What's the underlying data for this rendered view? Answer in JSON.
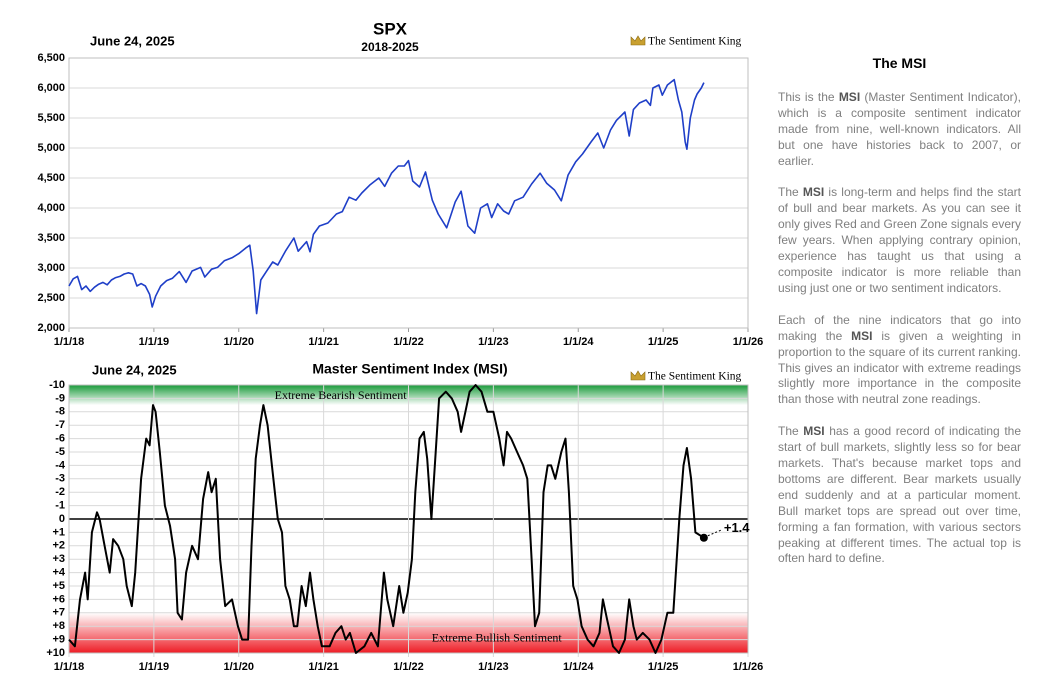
{
  "chart_data": [
    {
      "type": "line",
      "title": "SPX",
      "subtitle": "2018-2025",
      "date_label": "June 24, 2025",
      "logo": "The Sentiment King",
      "color": "#1f3fc8",
      "grid": true,
      "xgrid": false,
      "xlim": [
        2018,
        2026
      ],
      "xticks": [
        {
          "value": 2018,
          "label": "1/1/18"
        },
        {
          "value": 2019,
          "label": "1/1/19"
        },
        {
          "value": 2020,
          "label": "1/1/20"
        },
        {
          "value": 2021,
          "label": "1/1/21"
        },
        {
          "value": 2022,
          "label": "1/1/22"
        },
        {
          "value": 2023,
          "label": "1/1/23"
        },
        {
          "value": 2024,
          "label": "1/1/24"
        },
        {
          "value": 2025,
          "label": "1/1/25"
        },
        {
          "value": 2026,
          "label": "1/1/26"
        }
      ],
      "ylim": [
        2000,
        6500
      ],
      "yticks": [
        {
          "value": 2000,
          "label": "2,000"
        },
        {
          "value": 2500,
          "label": "2,500"
        },
        {
          "value": 3000,
          "label": "3,000"
        },
        {
          "value": 3500,
          "label": "3,500"
        },
        {
          "value": 4000,
          "label": "4,000"
        },
        {
          "value": 4500,
          "label": "4,500"
        },
        {
          "value": 5000,
          "label": "5,000"
        },
        {
          "value": 5500,
          "label": "5,500"
        },
        {
          "value": 6000,
          "label": "6,000"
        },
        {
          "value": 6500,
          "label": "6,500"
        }
      ],
      "x": [
        2018.0,
        2018.05,
        2018.1,
        2018.15,
        2018.2,
        2018.25,
        2018.3,
        2018.35,
        2018.4,
        2018.45,
        2018.5,
        2018.55,
        2018.6,
        2018.65,
        2018.7,
        2018.75,
        2018.8,
        2018.85,
        2018.9,
        2018.95,
        2018.98,
        2019.02,
        2019.08,
        2019.15,
        2019.22,
        2019.3,
        2019.38,
        2019.45,
        2019.55,
        2019.6,
        2019.68,
        2019.75,
        2019.83,
        2019.92,
        2020.0,
        2020.08,
        2020.13,
        2020.17,
        2020.21,
        2020.26,
        2020.32,
        2020.4,
        2020.46,
        2020.55,
        2020.65,
        2020.7,
        2020.8,
        2020.84,
        2020.88,
        2020.95,
        2021.05,
        2021.15,
        2021.22,
        2021.3,
        2021.38,
        2021.45,
        2021.55,
        2021.65,
        2021.72,
        2021.8,
        2021.88,
        2021.95,
        2022.0,
        2022.05,
        2022.13,
        2022.2,
        2022.28,
        2022.35,
        2022.45,
        2022.55,
        2022.62,
        2022.7,
        2022.78,
        2022.85,
        2022.93,
        2022.98,
        2023.05,
        2023.12,
        2023.18,
        2023.25,
        2023.35,
        2023.45,
        2023.55,
        2023.63,
        2023.72,
        2023.8,
        2023.88,
        2023.97,
        2024.05,
        2024.15,
        2024.23,
        2024.3,
        2024.38,
        2024.45,
        2024.55,
        2024.6,
        2024.65,
        2024.72,
        2024.8,
        2024.85,
        2024.88,
        2024.95,
        2024.99,
        2025.05,
        2025.13,
        2025.18,
        2025.22,
        2025.26,
        2025.28,
        2025.32,
        2025.37,
        2025.4,
        2025.45,
        2025.48
      ],
      "values": [
        2700,
        2820,
        2860,
        2640,
        2700,
        2610,
        2680,
        2730,
        2760,
        2720,
        2800,
        2840,
        2860,
        2900,
        2920,
        2900,
        2700,
        2740,
        2700,
        2560,
        2350,
        2530,
        2700,
        2790,
        2830,
        2940,
        2760,
        2950,
        3010,
        2850,
        2980,
        3010,
        3120,
        3170,
        3240,
        3330,
        3380,
        2950,
        2240,
        2800,
        2930,
        3100,
        3050,
        3280,
        3500,
        3280,
        3440,
        3270,
        3560,
        3700,
        3750,
        3900,
        3940,
        4180,
        4130,
        4250,
        4390,
        4500,
        4360,
        4580,
        4700,
        4700,
        4790,
        4450,
        4350,
        4600,
        4130,
        3900,
        3670,
        4100,
        4280,
        3700,
        3580,
        4000,
        4070,
        3840,
        4070,
        3950,
        3900,
        4120,
        4180,
        4400,
        4580,
        4410,
        4300,
        4120,
        4550,
        4770,
        4900,
        5100,
        5250,
        5000,
        5300,
        5460,
        5600,
        5200,
        5640,
        5750,
        5800,
        5710,
        6000,
        6050,
        5880,
        6050,
        6140,
        5800,
        5600,
        5100,
        4980,
        5500,
        5800,
        5900,
        6000,
        6090
      ]
    },
    {
      "type": "line",
      "title": "Master Sentiment Index (MSI)",
      "date_label": "June 24, 2025",
      "logo": "The Sentiment King",
      "color": "#000000",
      "grid": true,
      "xgrid": true,
      "y_inverted": true,
      "xlim": [
        2018,
        2026
      ],
      "xticks": [
        {
          "value": 2018,
          "label": "1/1/18"
        },
        {
          "value": 2019,
          "label": "1/1/19"
        },
        {
          "value": 2020,
          "label": "1/1/20"
        },
        {
          "value": 2021,
          "label": "1/1/21"
        },
        {
          "value": 2022,
          "label": "1/1/22"
        },
        {
          "value": 2023,
          "label": "1/1/23"
        },
        {
          "value": 2024,
          "label": "1/1/24"
        },
        {
          "value": 2025,
          "label": "1/1/25"
        },
        {
          "value": 2026,
          "label": "1/1/26"
        }
      ],
      "ylim": [
        -10,
        10
      ],
      "yticks": [
        -10,
        -9,
        -8,
        -7,
        -6,
        -5,
        -4,
        -3,
        -2,
        -1,
        0,
        {
          "value": 1,
          "label": "+1"
        },
        {
          "value": 2,
          "label": "+2"
        },
        {
          "value": 3,
          "label": "+3"
        },
        {
          "value": 4,
          "label": "+4"
        },
        {
          "value": 5,
          "label": "+5"
        },
        {
          "value": 6,
          "label": "+6"
        },
        {
          "value": 7,
          "label": "+7"
        },
        {
          "value": 8,
          "label": "+8"
        },
        {
          "value": 9,
          "label": "+9"
        },
        {
          "value": 10,
          "label": "+10"
        }
      ],
      "zones": [
        {
          "label": "Extreme Bearish Sentiment",
          "range": [
            -10,
            -8.5
          ],
          "color": "#1a9a3a"
        },
        {
          "label": "Extreme Bullish Sentiment",
          "range": [
            7,
            10
          ],
          "color": "#ee1c25"
        }
      ],
      "last_value_label": "+1.4",
      "x": [
        2018.0,
        2018.07,
        2018.13,
        2018.19,
        2018.22,
        2018.27,
        2018.33,
        2018.36,
        2018.42,
        2018.48,
        2018.52,
        2018.58,
        2018.64,
        2018.68,
        2018.74,
        2018.78,
        2018.81,
        2018.85,
        2018.91,
        2018.95,
        2018.99,
        2019.02,
        2019.07,
        2019.13,
        2019.19,
        2019.25,
        2019.28,
        2019.33,
        2019.38,
        2019.45,
        2019.52,
        2019.58,
        2019.64,
        2019.68,
        2019.73,
        2019.78,
        2019.84,
        2019.92,
        2019.99,
        2020.04,
        2020.11,
        2020.15,
        2020.2,
        2020.25,
        2020.29,
        2020.34,
        2020.39,
        2020.46,
        2020.51,
        2020.55,
        2020.6,
        2020.65,
        2020.69,
        2020.74,
        2020.79,
        2020.84,
        2020.88,
        2020.93,
        2020.98,
        2021.07,
        2021.14,
        2021.21,
        2021.26,
        2021.31,
        2021.38,
        2021.48,
        2021.56,
        2021.64,
        2021.71,
        2021.75,
        2021.82,
        2021.89,
        2021.94,
        2021.99,
        2022.04,
        2022.08,
        2022.13,
        2022.18,
        2022.22,
        2022.27,
        2022.32,
        2022.36,
        2022.44,
        2022.51,
        2022.58,
        2022.62,
        2022.67,
        2022.72,
        2022.79,
        2022.86,
        2022.93,
        2023.0,
        2023.07,
        2023.12,
        2023.16,
        2023.21,
        2023.28,
        2023.35,
        2023.4,
        2023.45,
        2023.49,
        2023.54,
        2023.59,
        2023.64,
        2023.68,
        2023.73,
        2023.8,
        2023.85,
        2023.89,
        2023.94,
        2023.99,
        2024.04,
        2024.11,
        2024.18,
        2024.25,
        2024.29,
        2024.34,
        2024.41,
        2024.48,
        2024.55,
        2024.6,
        2024.65,
        2024.69,
        2024.76,
        2024.84,
        2024.91,
        2024.98,
        2025.05,
        2025.12,
        2025.19,
        2025.24,
        2025.28,
        2025.33,
        2025.38,
        2025.48
      ],
      "values": [
        9,
        9.5,
        6,
        4,
        6,
        1,
        -0.5,
        0,
        2,
        4,
        1.5,
        2,
        3,
        5,
        6.5,
        4,
        1,
        -3,
        -6,
        -5.5,
        -8.5,
        -8,
        -5,
        -1,
        0.5,
        3,
        7,
        7.5,
        4,
        2,
        3,
        -1.5,
        -3.5,
        -2,
        -3,
        3,
        6.5,
        6,
        8,
        9,
        9,
        2,
        -4.5,
        -7,
        -8.5,
        -7,
        -4,
        0,
        1,
        5,
        6,
        8,
        8,
        5,
        6.5,
        4,
        6,
        8,
        9.5,
        9.5,
        8.5,
        8,
        9,
        8.5,
        10,
        9.5,
        8.5,
        9.5,
        4,
        6,
        8,
        5,
        7,
        5.5,
        3,
        -2,
        -6,
        -6.5,
        -4.5,
        0,
        -5,
        -9,
        -9.5,
        -9,
        -8,
        -6.5,
        -8,
        -9.5,
        -10,
        -9.5,
        -8,
        -8,
        -6,
        -4,
        -6.5,
        -6,
        -5,
        -4,
        -3,
        3,
        8,
        7,
        -2,
        -4,
        -4,
        -3,
        -5,
        -6,
        -2,
        5,
        6,
        8,
        9,
        9.5,
        8.5,
        6,
        7.5,
        9.5,
        10,
        9,
        6,
        8,
        9,
        8.5,
        9,
        10,
        9,
        7,
        7,
        0,
        -4,
        -5.3,
        -3,
        1,
        1.4
      ]
    }
  ],
  "sidebar": {
    "title": "The MSI",
    "paragraphs": [
      [
        "This is the ",
        "MSI",
        " (Master Sentiment Indicator), which is a composite sentiment indicator made from nine, well-known indicators. All but one have histories back to 2007, or earlier."
      ],
      [
        "The ",
        "MSI",
        " is long-term and helps find the start of bull and bear markets. As you can see it only gives Red and Green Zone signals every few years. When applying contrary opinion, experience has taught us that using a composite indicator is more reliable than using just one or two sentiment indicators."
      ],
      [
        "Each of the nine indicators that go into making the ",
        "MSI",
        " is given a weighting in proportion to the square of its current ranking. This gives an indicator with extreme readings slightly more importance in the composite than those with neutral zone readings."
      ],
      [
        "The ",
        "MSI",
        " has a good record of indicating the start of bull markets, slightly less so for bear markets. That's because market tops and bottoms are different. Bear markets usually end suddenly and at a particular moment. Bull market tops are spread out over time, forming a fan formation, with various sectors peaking at different times. The actual top is often hard to define."
      ]
    ]
  }
}
